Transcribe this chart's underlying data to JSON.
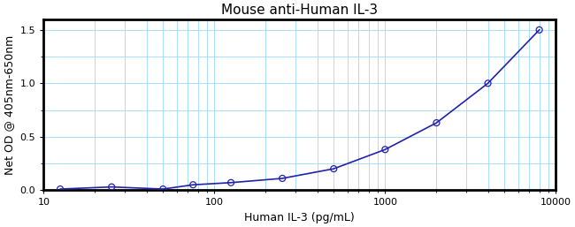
{
  "title": "Mouse anti-Human IL-3",
  "xlabel": "Human IL-3 (pg/mL)",
  "ylabel": "Net OD @ 405nm-650nm",
  "x_data": [
    12.5,
    25,
    50,
    75,
    125,
    250,
    500,
    1000,
    2000,
    4000,
    8000
  ],
  "y_data": [
    0.01,
    0.03,
    0.01,
    0.05,
    0.07,
    0.11,
    0.2,
    0.38,
    0.63,
    1.0,
    1.5
  ],
  "xlim_log": [
    10,
    10000
  ],
  "ylim": [
    0.0,
    1.6
  ],
  "line_color": "#2222aa",
  "marker_color": "#2222aa",
  "grid_color": "#aaddff",
  "background_color": "#ffffff",
  "yticks": [
    0,
    0.5,
    1.0,
    1.5
  ],
  "xticks": [
    10,
    100,
    1000,
    10000
  ],
  "xtick_labels": [
    "10",
    "100",
    "1000",
    "10000"
  ],
  "title_fontsize": 11,
  "label_fontsize": 9,
  "tick_fontsize": 8,
  "spine_linewidth": 2.0,
  "figsize": [
    6.5,
    2.57
  ],
  "dpi": 100
}
